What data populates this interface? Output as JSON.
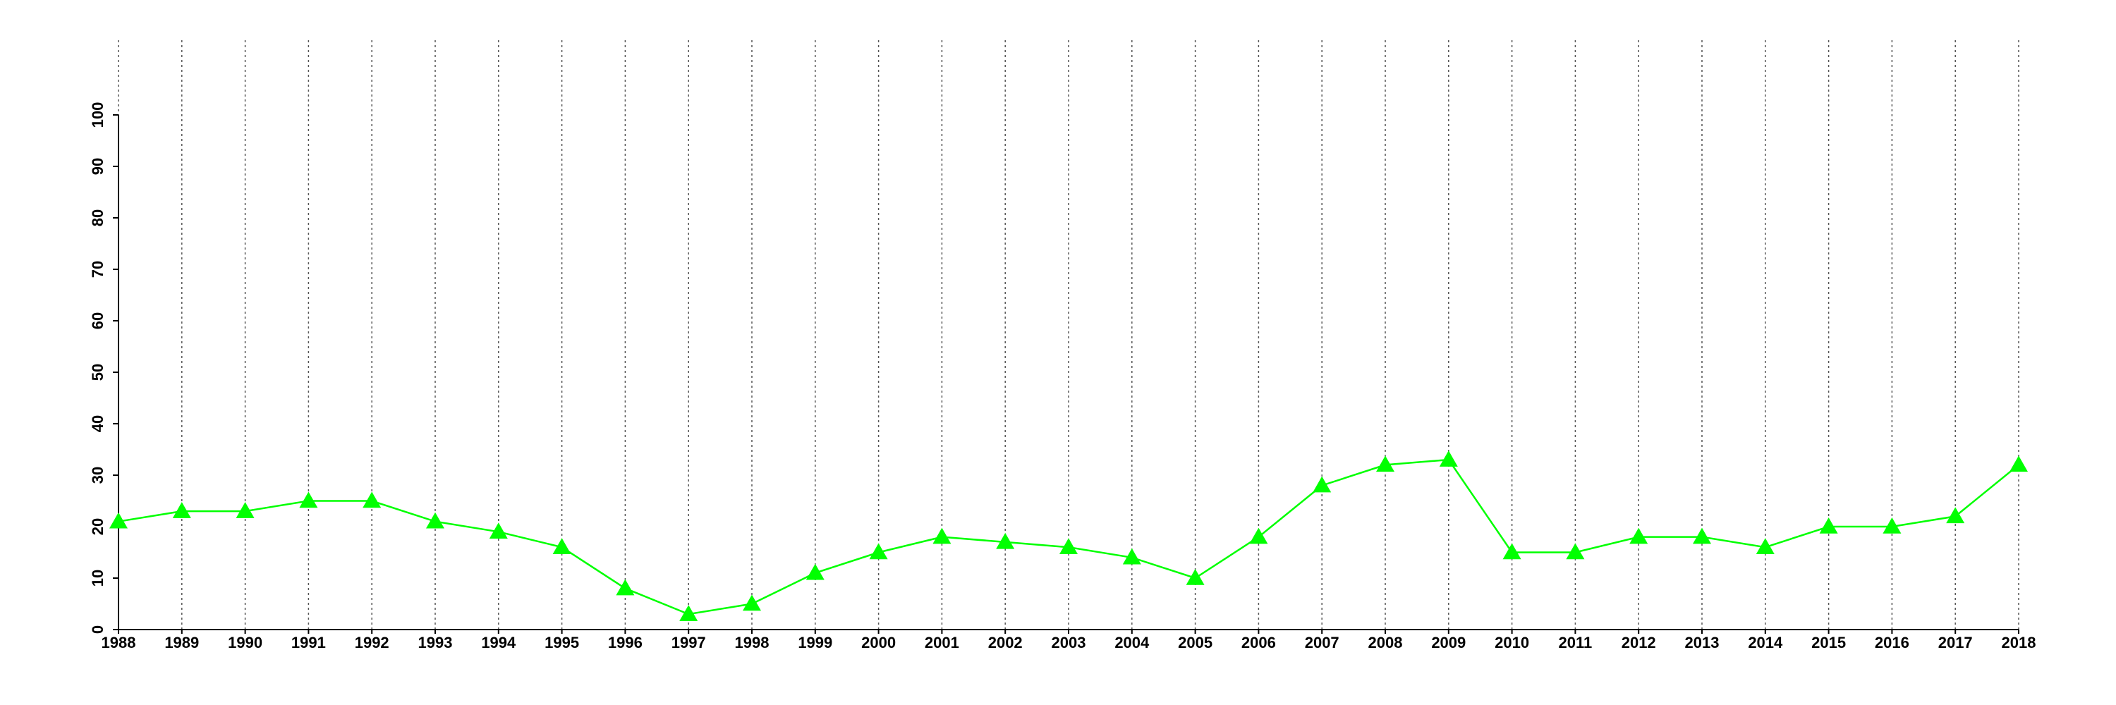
{
  "chart_data": {
    "type": "line",
    "x": [
      1988,
      1989,
      1990,
      1991,
      1992,
      1993,
      1994,
      1995,
      1996,
      1997,
      1998,
      1999,
      2000,
      2001,
      2002,
      2003,
      2004,
      2005,
      2006,
      2007,
      2008,
      2009,
      2010,
      2011,
      2012,
      2013,
      2014,
      2015,
      2016,
      2017,
      2018
    ],
    "series": [
      {
        "color": "#00ff00",
        "marker": "triangle",
        "values": [
          21,
          23,
          23,
          25,
          25,
          21,
          19,
          16,
          8,
          3,
          5,
          11,
          15,
          18,
          17,
          16,
          14,
          10,
          18,
          28,
          32,
          33,
          15,
          15,
          18,
          18,
          16,
          20,
          20,
          22,
          32
        ]
      }
    ],
    "xlim": [
      1988,
      2018
    ],
    "xticks": [
      1988,
      1989,
      1990,
      1991,
      1992,
      1993,
      1994,
      1995,
      1996,
      1997,
      1998,
      1999,
      2000,
      2001,
      2002,
      2003,
      2004,
      2005,
      2006,
      2007,
      2008,
      2009,
      2010,
      2011,
      2012,
      2013,
      2014,
      2015,
      2016,
      2017,
      2018
    ],
    "ylim": [
      0,
      100
    ],
    "yticks": [
      0,
      10,
      20,
      30,
      40,
      50,
      60,
      70,
      80,
      90,
      100
    ],
    "grid": "x"
  }
}
